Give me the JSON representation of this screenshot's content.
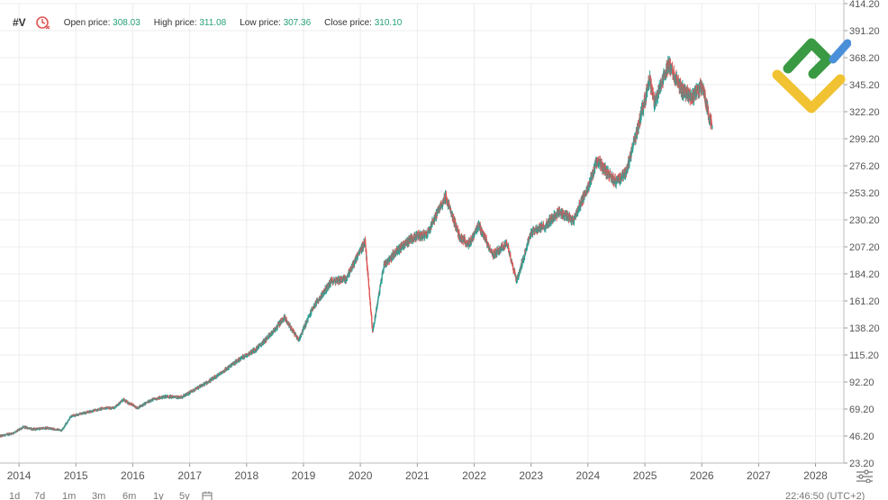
{
  "header": {
    "ticker": "#V",
    "clock_icon": "history-clock-icon",
    "open_label": "Open price:",
    "open_value": "308.03",
    "high_label": "High price:",
    "high_value": "311.08",
    "low_label": "Low price:",
    "low_value": "307.36",
    "close_label": "Close price:",
    "close_value": "310.10"
  },
  "colors": {
    "up": "#26a69a",
    "down": "#e05454",
    "grid": "#ececec",
    "axis_text": "#555555",
    "logo_green": "#3a9a44",
    "logo_yellow": "#f1c232",
    "logo_blue": "#4a90d9"
  },
  "bottom_bar": {
    "ranges": [
      "1d",
      "7d",
      "1m",
      "3m",
      "6m",
      "1y",
      "5y"
    ],
    "calendar_icon": "calendar-icon",
    "settings_icon": "chart-settings-icon",
    "time": "22:46:50 (UTC+2)"
  },
  "chart_data": {
    "type": "candlestick",
    "y_ticks": [
      "414.20",
      "391.20",
      "368.20",
      "345.20",
      "322.20",
      "299.20",
      "276.20",
      "253.20",
      "230.20",
      "207.20",
      "184.20",
      "161.20",
      "138.20",
      "115.20",
      "92.20",
      "69.20",
      "46.20",
      "23.20"
    ],
    "ylim": [
      23.2,
      414.2
    ],
    "x_ticks": [
      "2014",
      "2015",
      "2016",
      "2017",
      "2018",
      "2019",
      "2020",
      "2021",
      "2022",
      "2023",
      "2024",
      "2025",
      "2026",
      "2027",
      "2028"
    ],
    "xlim": [
      "2013-09-01",
      "2028-07-01"
    ],
    "price_path": [
      [
        "2013-09-01",
        46
      ],
      [
        "2013-12-01",
        49
      ],
      [
        "2014-02-01",
        54
      ],
      [
        "2014-04-01",
        52
      ],
      [
        "2014-07-01",
        53
      ],
      [
        "2014-10-01",
        51
      ],
      [
        "2014-12-01",
        63
      ],
      [
        "2015-03-01",
        66
      ],
      [
        "2015-07-01",
        70
      ],
      [
        "2015-09-01",
        70
      ],
      [
        "2015-11-01",
        77
      ],
      [
        "2016-02-01",
        70
      ],
      [
        "2016-05-01",
        77
      ],
      [
        "2016-08-01",
        80
      ],
      [
        "2016-11-01",
        79
      ],
      [
        "2017-01-01",
        83
      ],
      [
        "2017-06-01",
        95
      ],
      [
        "2017-12-01",
        113
      ],
      [
        "2018-03-01",
        120
      ],
      [
        "2018-06-01",
        132
      ],
      [
        "2018-09-01",
        147
      ],
      [
        "2018-12-01",
        128
      ],
      [
        "2019-03-01",
        155
      ],
      [
        "2019-07-01",
        178
      ],
      [
        "2019-10-01",
        180
      ],
      [
        "2020-02-01",
        212
      ],
      [
        "2020-03-20",
        135
      ],
      [
        "2020-06-01",
        192
      ],
      [
        "2020-09-01",
        205
      ],
      [
        "2020-12-01",
        215
      ],
      [
        "2021-03-01",
        218
      ],
      [
        "2021-07-01",
        250
      ],
      [
        "2021-10-01",
        215
      ],
      [
        "2021-12-01",
        210
      ],
      [
        "2022-02-01",
        225
      ],
      [
        "2022-05-01",
        200
      ],
      [
        "2022-08-01",
        210
      ],
      [
        "2022-10-01",
        178
      ],
      [
        "2023-01-01",
        220
      ],
      [
        "2023-04-01",
        225
      ],
      [
        "2023-07-01",
        237
      ],
      [
        "2023-10-01",
        230
      ],
      [
        "2024-01-01",
        258
      ],
      [
        "2024-03-01",
        280
      ],
      [
        "2024-07-01",
        262
      ],
      [
        "2024-09-01",
        270
      ],
      [
        "2024-12-01",
        316
      ],
      [
        "2025-02-01",
        350
      ],
      [
        "2025-03-01",
        330
      ],
      [
        "2025-06-01",
        362
      ],
      [
        "2025-09-01",
        340
      ],
      [
        "2025-11-01",
        335
      ],
      [
        "2026-01-01",
        345
      ],
      [
        "2026-02-15",
        320
      ],
      [
        "2026-03-09",
        310
      ]
    ],
    "last_candle": {
      "open": 308.03,
      "high": 311.08,
      "low": 307.36,
      "close": 310.1
    }
  }
}
